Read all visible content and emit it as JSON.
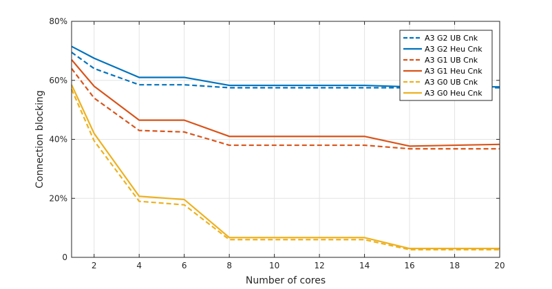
{
  "chart_data": {
    "type": "line",
    "title": "",
    "xlabel": "Number of cores",
    "ylabel": "Connection blocking",
    "xlim": [
      1,
      20
    ],
    "ylim": [
      0,
      80
    ],
    "xticks": [
      2,
      4,
      6,
      8,
      10,
      12,
      14,
      16,
      18,
      20
    ],
    "yticks": [
      0,
      20,
      40,
      60,
      80
    ],
    "ytick_labels": [
      "0",
      "20%",
      "40%",
      "60%",
      "80%"
    ],
    "grid": true,
    "legend_position": "top-right",
    "x": [
      1,
      2,
      4,
      6,
      8,
      14,
      16,
      20
    ],
    "series": [
      {
        "name": "A3 G2 UB Cnk",
        "style": "dashed",
        "color": "#0072BD",
        "values": [
          69.5,
          64,
          58.5,
          58.5,
          57.5,
          57.5,
          57.5,
          57.5
        ]
      },
      {
        "name": "A3 G2 Heu Cnk",
        "style": "solid",
        "color": "#0072BD",
        "values": [
          71.5,
          67.5,
          61,
          61,
          58.3,
          58.3,
          57.8,
          57.8
        ]
      },
      {
        "name": "A3 G1 UB Cnk",
        "style": "dashed",
        "color": "#D95319",
        "values": [
          64,
          54,
          43,
          42.5,
          38,
          38,
          36.8,
          36.8
        ]
      },
      {
        "name": "A3 G1 Heu Cnk",
        "style": "solid",
        "color": "#D95319",
        "values": [
          67,
          58,
          46.5,
          46.5,
          41,
          41,
          37.7,
          38.3
        ]
      },
      {
        "name": "A3 G0 UB Cnk",
        "style": "dashed",
        "color": "#EDB120",
        "values": [
          57,
          39.5,
          19,
          17.8,
          6,
          6,
          2.6,
          2.6
        ]
      },
      {
        "name": "A3 G0 Heu Cnk",
        "style": "solid",
        "color": "#EDB120",
        "values": [
          58.5,
          42,
          20.7,
          19.6,
          6.7,
          6.7,
          3,
          3
        ]
      }
    ]
  }
}
